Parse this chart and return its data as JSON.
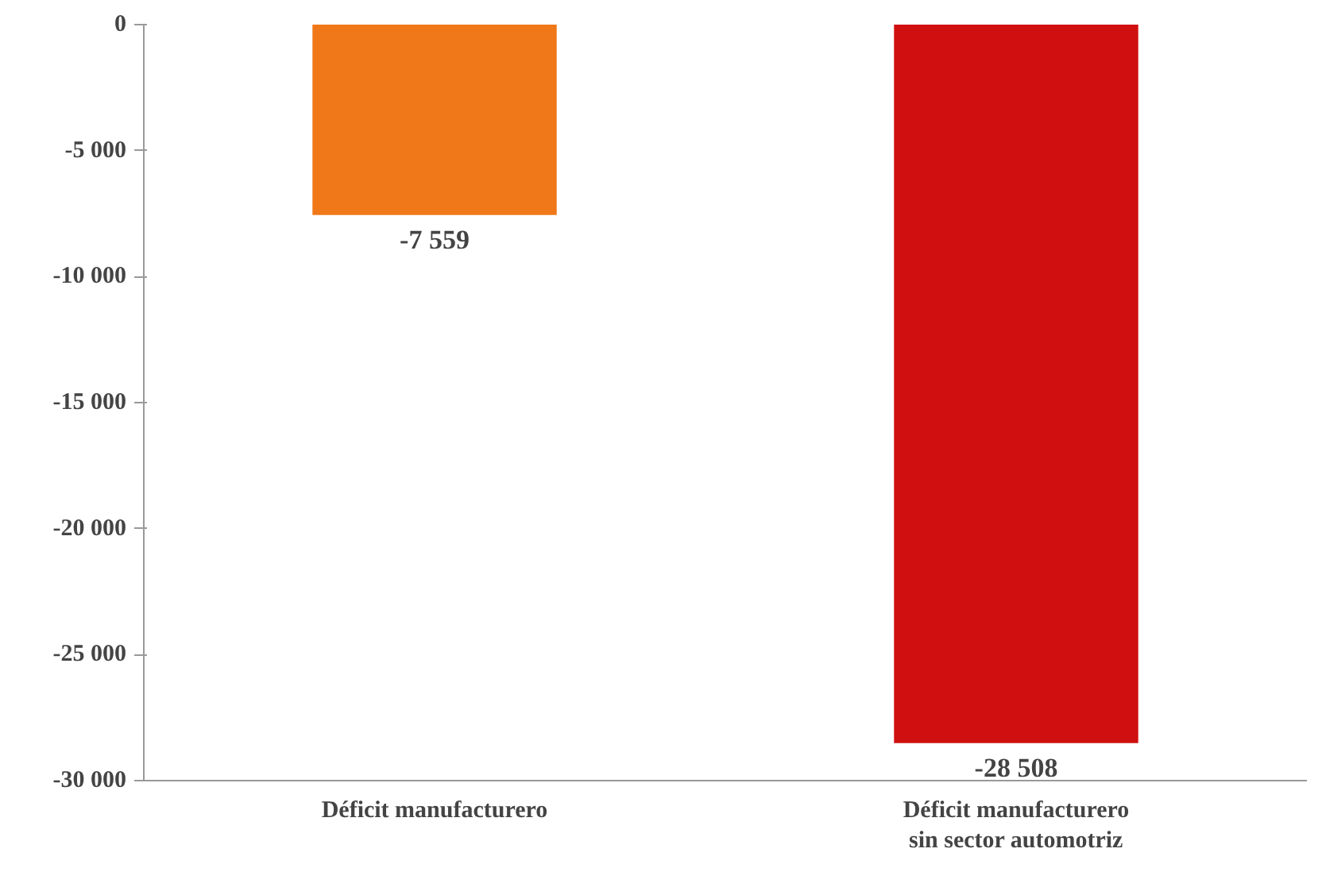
{
  "chart_data": {
    "type": "bar",
    "categories": [
      "Déficit manufacturero",
      "Déficit manufacturero\nsin sector automotriz"
    ],
    "values": [
      -7559,
      -28508
    ],
    "colors": [
      "#f07818",
      "#d01010"
    ],
    "value_labels": [
      "-7 559",
      "-28 508"
    ],
    "ylim": [
      -30000,
      0
    ],
    "yticks": [
      {
        "value": -30000,
        "label": "-30 000"
      },
      {
        "value": -25000,
        "label": "-25 000"
      },
      {
        "value": -20000,
        "label": "-20 000"
      },
      {
        "value": -15000,
        "label": "-15 000"
      },
      {
        "value": -10000,
        "label": "-10 000"
      },
      {
        "value": -5000,
        "label": "-5 000"
      },
      0
    ],
    "grid": false
  }
}
